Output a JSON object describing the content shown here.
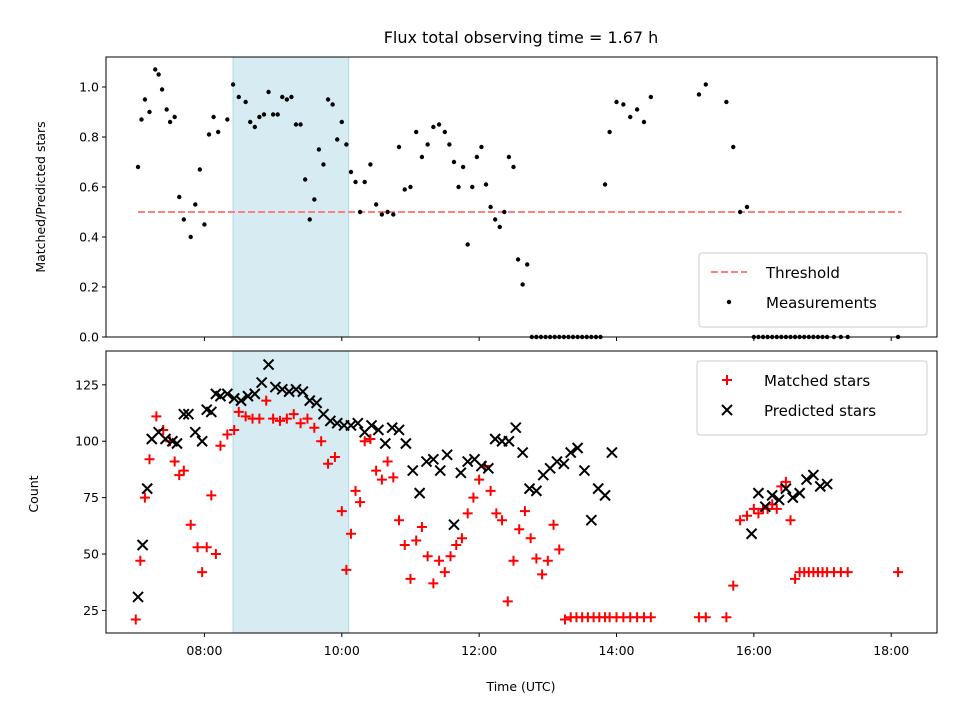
{
  "figure": {
    "title": "Flux total observing time = 1.67 h",
    "xlabel": "Time (UTC)",
    "shaded_band_color": "#add8e6"
  },
  "chart_data": [
    {
      "type": "scatter",
      "ylabel": "Matched/Predicted stars",
      "xlim": [
        "06:34",
        "18:40"
      ],
      "ylim": [
        0,
        1.12
      ],
      "yticks": [
        0.0,
        0.2,
        0.4,
        0.6,
        0.8,
        1.0
      ],
      "ytick_labels": [
        "0.0",
        "0.2",
        "0.4",
        "0.6",
        "0.8",
        "1.0"
      ],
      "xticks": [
        "08:00",
        "10:00",
        "12:00",
        "14:00",
        "16:00",
        "18:00"
      ],
      "grid": false,
      "legend_position": "lower right",
      "shaded_interval": [
        "08:25",
        "10:06"
      ],
      "threshold": {
        "name": "Threshold",
        "value": 0.5,
        "x_range": [
          "07:02",
          "18:09"
        ],
        "color": "#ff7f7f",
        "style": "dashed"
      },
      "series": [
        {
          "name": "Measurements",
          "color": "#000000",
          "x": [
            "07:02",
            "07:05",
            "07:08",
            "07:12",
            "07:17",
            "07:20",
            "07:23",
            "07:27",
            "07:30",
            "07:34",
            "07:38",
            "07:42",
            "07:48",
            "07:52",
            "07:56",
            "08:00",
            "08:04",
            "08:08",
            "08:12",
            "08:20",
            "08:25",
            "08:30",
            "08:36",
            "08:40",
            "08:44",
            "08:48",
            "08:52",
            "08:56",
            "09:00",
            "09:04",
            "09:08",
            "09:12",
            "09:16",
            "09:20",
            "09:24",
            "09:28",
            "09:32",
            "09:36",
            "09:40",
            "09:44",
            "09:48",
            "09:52",
            "09:56",
            "10:00",
            "10:04",
            "10:08",
            "10:12",
            "10:16",
            "10:20",
            "10:25",
            "10:30",
            "10:35",
            "10:40",
            "10:45",
            "10:50",
            "10:55",
            "11:00",
            "11:05",
            "11:10",
            "11:15",
            "11:20",
            "11:25",
            "11:30",
            "11:34",
            "11:38",
            "11:42",
            "11:46",
            "11:50",
            "11:54",
            "11:58",
            "12:02",
            "12:06",
            "12:10",
            "12:14",
            "12:18",
            "12:22",
            "12:26",
            "12:30",
            "12:34",
            "12:38",
            "12:42",
            "12:46",
            "12:50",
            "12:54",
            "12:58",
            "13:02",
            "13:06",
            "13:10",
            "13:14",
            "13:18",
            "13:22",
            "13:26",
            "13:30",
            "13:34",
            "13:38",
            "13:42",
            "13:46",
            "13:50",
            "13:54",
            "14:00",
            "14:06",
            "14:12",
            "14:18",
            "14:24",
            "14:30",
            "15:12",
            "15:18",
            "15:36",
            "15:42",
            "15:48",
            "15:54",
            "16:00",
            "16:04",
            "16:08",
            "16:12",
            "16:16",
            "16:20",
            "16:24",
            "16:28",
            "16:32",
            "16:36",
            "16:40",
            "16:44",
            "16:48",
            "16:52",
            "16:56",
            "17:00",
            "17:04",
            "17:10",
            "17:16",
            "17:22",
            "18:06"
          ],
          "y": [
            0.68,
            0.87,
            0.95,
            0.9,
            1.07,
            1.05,
            0.99,
            0.91,
            0.86,
            0.88,
            0.56,
            0.47,
            0.4,
            0.53,
            0.67,
            0.45,
            0.81,
            0.88,
            0.82,
            0.87,
            1.01,
            0.96,
            0.94,
            0.86,
            0.84,
            0.88,
            0.89,
            0.98,
            0.89,
            0.89,
            0.96,
            0.95,
            0.96,
            0.85,
            0.85,
            0.63,
            0.47,
            0.55,
            0.75,
            0.69,
            0.95,
            0.93,
            0.79,
            0.86,
            0.77,
            0.66,
            0.62,
            0.5,
            0.62,
            0.69,
            0.53,
            0.49,
            0.5,
            0.49,
            0.76,
            0.59,
            0.6,
            0.82,
            0.72,
            0.77,
            0.84,
            0.85,
            0.82,
            0.77,
            0.7,
            0.6,
            0.68,
            0.37,
            0.6,
            0.72,
            0.76,
            0.61,
            0.52,
            0.47,
            0.44,
            0.5,
            0.72,
            0.68,
            0.31,
            0.21,
            0.29,
            0.0,
            0.0,
            0.0,
            0.0,
            0.0,
            0.0,
            0.0,
            0.0,
            0.0,
            0.0,
            0.0,
            0.0,
            0.0,
            0.0,
            0.0,
            0.0,
            0.61,
            0.82,
            0.94,
            0.93,
            0.88,
            0.91,
            0.86,
            0.96,
            0.97,
            1.01,
            0.94,
            0.76,
            0.5,
            0.52,
            0.0,
            0.0,
            0.0,
            0.0,
            0.0,
            0.0,
            0.0,
            0.0,
            0.0,
            0.0,
            0.0,
            0.0,
            0.0,
            0.0,
            0.0,
            0.0,
            0.0,
            0.0,
            0.0,
            0.0,
            0.0
          ]
        }
      ]
    },
    {
      "type": "scatter",
      "ylabel": "Count",
      "xlim": [
        "06:34",
        "18:40"
      ],
      "ylim": [
        15,
        140
      ],
      "yticks": [
        25,
        50,
        75,
        100,
        125
      ],
      "ytick_labels": [
        "25",
        "50",
        "75",
        "100",
        "125"
      ],
      "xticks": [
        "08:00",
        "10:00",
        "12:00",
        "14:00",
        "16:00",
        "18:00"
      ],
      "xtick_labels": [
        "08:00",
        "10:00",
        "12:00",
        "14:00",
        "16:00",
        "18:00"
      ],
      "grid": false,
      "legend_position": "upper right",
      "shaded_interval": [
        "08:25",
        "10:06"
      ],
      "series": [
        {
          "name": "Matched stars",
          "marker": "plus",
          "color": "#ff0000",
          "x": [
            "07:00",
            "07:04",
            "07:08",
            "07:12",
            "07:18",
            "07:24",
            "07:30",
            "07:34",
            "07:38",
            "07:42",
            "07:48",
            "07:54",
            "07:58",
            "08:02",
            "08:06",
            "08:10",
            "08:14",
            "08:20",
            "08:26",
            "08:30",
            "08:36",
            "08:42",
            "08:48",
            "08:54",
            "09:00",
            "09:06",
            "09:12",
            "09:18",
            "09:24",
            "09:30",
            "09:36",
            "09:42",
            "09:48",
            "09:54",
            "10:00",
            "10:04",
            "10:08",
            "10:12",
            "10:16",
            "10:20",
            "10:25",
            "10:30",
            "10:35",
            "10:40",
            "10:45",
            "10:50",
            "10:55",
            "11:00",
            "11:05",
            "11:10",
            "11:15",
            "11:20",
            "11:25",
            "11:30",
            "11:35",
            "11:40",
            "11:45",
            "11:50",
            "11:55",
            "12:00",
            "12:05",
            "12:10",
            "12:15",
            "12:20",
            "12:25",
            "12:30",
            "12:35",
            "12:40",
            "12:45",
            "12:50",
            "12:55",
            "13:00",
            "13:05",
            "13:10",
            "13:15",
            "13:20",
            "13:25",
            "13:30",
            "13:35",
            "13:40",
            "13:45",
            "13:50",
            "13:54",
            "14:00",
            "14:06",
            "14:12",
            "14:18",
            "14:24",
            "14:30",
            "15:12",
            "15:18",
            "15:36",
            "15:42",
            "15:48",
            "15:54",
            "16:00",
            "16:04",
            "16:08",
            "16:12",
            "16:16",
            "16:20",
            "16:24",
            "16:28",
            "16:32",
            "16:36",
            "16:40",
            "16:44",
            "16:48",
            "16:52",
            "16:56",
            "17:00",
            "17:04",
            "17:10",
            "17:16",
            "17:22",
            "18:06"
          ],
          "y": [
            21,
            47,
            75,
            92,
            111,
            105,
            100,
            91,
            85,
            87,
            63,
            53,
            42,
            53,
            76,
            50,
            98,
            103,
            105,
            113,
            111,
            110,
            110,
            118,
            110,
            109,
            110,
            112,
            108,
            110,
            106,
            100,
            90,
            93,
            69,
            43,
            59,
            78,
            73,
            100,
            101,
            87,
            83,
            91,
            84,
            65,
            54,
            39,
            56,
            62,
            49,
            37,
            47,
            42,
            49,
            54,
            57,
            68,
            75,
            83,
            89,
            78,
            68,
            65,
            29,
            47,
            61,
            69,
            57,
            48,
            41,
            47,
            63,
            52,
            21,
            22,
            22,
            22,
            22,
            22,
            22,
            22,
            22,
            22,
            22,
            22,
            22,
            22,
            22,
            22,
            22,
            22,
            36,
            65,
            67,
            70,
            68,
            70,
            70,
            72,
            70,
            80,
            82,
            65,
            39,
            42,
            42,
            42,
            42,
            42,
            42,
            42,
            42,
            42,
            42,
            42
          ]
        },
        {
          "name": "Predicted stars",
          "marker": "x",
          "color": "#000000",
          "x": [
            "07:02",
            "07:06",
            "07:10",
            "07:14",
            "07:20",
            "07:26",
            "07:32",
            "07:36",
            "07:42",
            "07:46",
            "07:52",
            "07:58",
            "08:02",
            "08:06",
            "08:10",
            "08:14",
            "08:20",
            "08:26",
            "08:32",
            "08:38",
            "08:44",
            "08:50",
            "08:56",
            "09:02",
            "09:08",
            "09:14",
            "09:20",
            "09:26",
            "09:32",
            "09:38",
            "09:44",
            "09:50",
            "09:56",
            "10:02",
            "10:08",
            "10:14",
            "10:20",
            "10:26",
            "10:32",
            "10:38",
            "10:44",
            "10:50",
            "10:56",
            "11:02",
            "11:08",
            "11:14",
            "11:20",
            "11:26",
            "11:32",
            "11:38",
            "11:44",
            "11:50",
            "11:56",
            "12:02",
            "12:08",
            "12:14",
            "12:20",
            "12:26",
            "12:32",
            "12:38",
            "12:44",
            "12:50",
            "12:56",
            "13:02",
            "13:08",
            "13:14",
            "13:20",
            "13:26",
            "13:32",
            "13:38",
            "13:44",
            "13:50",
            "13:56",
            "15:58",
            "16:04",
            "16:10",
            "16:16",
            "16:22",
            "16:28",
            "16:34",
            "16:40",
            "16:46",
            "16:52",
            "16:58",
            "17:04"
          ],
          "y": [
            31,
            54,
            79,
            101,
            104,
            101,
            100,
            99,
            112,
            112,
            104,
            100,
            114,
            113,
            121,
            120,
            121,
            119,
            118,
            120,
            121,
            126,
            134,
            124,
            123,
            122,
            123,
            122,
            118,
            117,
            112,
            109,
            108,
            107,
            107,
            108,
            104,
            107,
            105,
            99,
            106,
            105,
            99,
            87,
            77,
            91,
            92,
            87,
            94,
            63,
            86,
            91,
            92,
            89,
            88,
            101,
            100,
            100,
            106,
            95,
            79,
            78,
            85,
            88,
            91,
            90,
            95,
            97,
            87,
            65,
            79,
            76,
            95,
            59,
            77,
            71,
            76,
            74,
            79,
            75,
            77,
            83,
            85,
            80,
            81
          ]
        }
      ]
    }
  ]
}
